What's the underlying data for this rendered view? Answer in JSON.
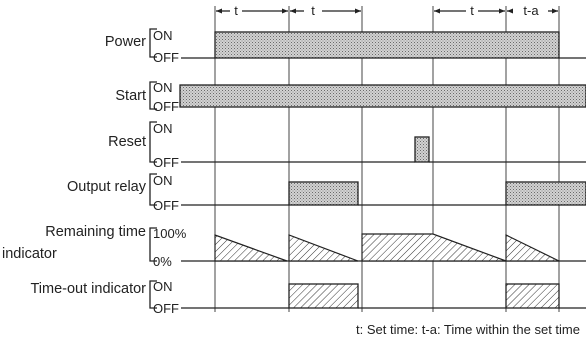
{
  "signals": [
    {
      "label": "Power",
      "on": "ON",
      "off": "OFF"
    },
    {
      "label": "Start",
      "on": "ON",
      "off": "OFF"
    },
    {
      "label": "Reset",
      "on": "ON",
      "off": "OFF"
    },
    {
      "label": "Output relay",
      "on": "ON",
      "off": "OFF"
    },
    {
      "label_line1": "Remaining time",
      "label_line2": "indicator",
      "on": "100%",
      "off": "0%"
    },
    {
      "label": "Time-out indicator",
      "on": "ON",
      "off": "OFF"
    }
  ],
  "timing": {
    "t1": "t",
    "t2": "t",
    "t3": "t",
    "ta": "t-a"
  },
  "caption": "t: Set time: t-a: Time within the set time",
  "colors": {
    "dotted_fill": "#bdbdbd",
    "line": "#222222"
  }
}
